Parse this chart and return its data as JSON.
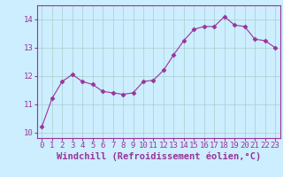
{
  "x": [
    0,
    1,
    2,
    3,
    4,
    5,
    6,
    7,
    8,
    9,
    10,
    11,
    12,
    13,
    14,
    15,
    16,
    17,
    18,
    19,
    20,
    21,
    22,
    23
  ],
  "y": [
    10.2,
    11.2,
    11.8,
    12.05,
    11.8,
    11.7,
    11.45,
    11.4,
    11.35,
    11.4,
    11.8,
    11.85,
    12.2,
    12.75,
    13.25,
    13.65,
    13.75,
    13.75,
    14.1,
    13.8,
    13.75,
    13.3,
    13.25,
    13.0
  ],
  "line_color": "#993399",
  "marker": "D",
  "marker_size": 2.5,
  "bg_color": "#cceeff",
  "grid_color": "#aacccc",
  "ylim": [
    9.8,
    14.5
  ],
  "xlim": [
    -0.5,
    23.5
  ],
  "yticks": [
    10,
    11,
    12,
    13,
    14
  ],
  "xticks": [
    0,
    1,
    2,
    3,
    4,
    5,
    6,
    7,
    8,
    9,
    10,
    11,
    12,
    13,
    14,
    15,
    16,
    17,
    18,
    19,
    20,
    21,
    22,
    23
  ],
  "tick_color": "#993399",
  "label_color": "#993399",
  "axis_color": "#993399",
  "font_size": 6.5,
  "xlabel": "Windchill (Refroidissement éolien,°C)",
  "xlabel_fontsize": 7.5
}
